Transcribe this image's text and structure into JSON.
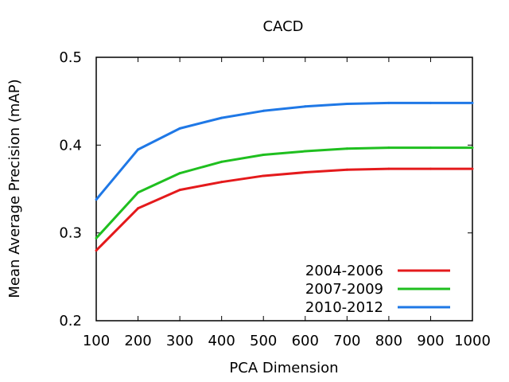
{
  "chart_data": {
    "type": "line",
    "title": "CACD",
    "xlabel": "PCA Dimension",
    "ylabel": "Mean Average Precision (mAP)",
    "xlim": [
      100,
      1000
    ],
    "ylim": [
      0.2,
      0.5
    ],
    "x": [
      100,
      200,
      300,
      400,
      500,
      600,
      700,
      800,
      900,
      1000
    ],
    "xticks": [
      "100",
      "200",
      "300",
      "400",
      "500",
      "600",
      "700",
      "800",
      "900",
      "1000"
    ],
    "yticks": [
      "0.2",
      "0.3",
      "0.4",
      "0.5"
    ],
    "ytick_values": [
      0.2,
      0.3,
      0.4,
      0.5
    ],
    "grid": false,
    "legend_position": "bottom-right",
    "series": [
      {
        "name": "2004-2006",
        "color": "#e41a1c",
        "values": [
          0.28,
          0.328,
          0.349,
          0.358,
          0.365,
          0.369,
          0.372,
          0.373,
          0.373,
          0.373
        ]
      },
      {
        "name": "2007-2009",
        "color": "#1fbf1f",
        "values": [
          0.294,
          0.346,
          0.368,
          0.381,
          0.389,
          0.393,
          0.396,
          0.397,
          0.397,
          0.397
        ]
      },
      {
        "name": "2010-2012",
        "color": "#1f78e6",
        "values": [
          0.338,
          0.395,
          0.419,
          0.431,
          0.439,
          0.444,
          0.447,
          0.448,
          0.448,
          0.448
        ]
      }
    ]
  }
}
